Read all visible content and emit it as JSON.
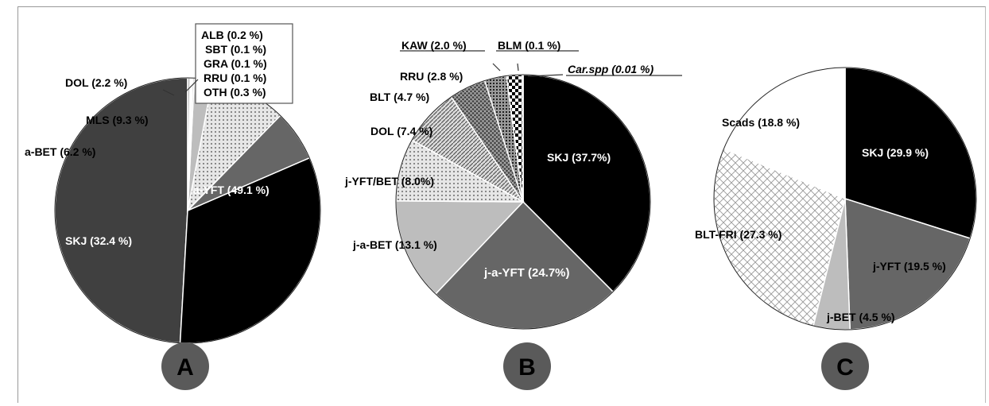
{
  "colors": {
    "black": "#000000",
    "dark_gray": "#404040",
    "mid_gray": "#666666",
    "light_gray": "#bdbdbd",
    "white": "#ffffff",
    "badge": "#5a5a5a"
  },
  "chart_data": [
    {
      "type": "pie",
      "badge": "A",
      "slices": [
        {
          "label": "a-YFT (49.1 %)",
          "value": 49.1,
          "fill": "dark"
        },
        {
          "label": "SKJ (32.4 %)",
          "value": 32.4,
          "fill": "black"
        },
        {
          "label": "a-BET (6.2 %)",
          "value": 6.2,
          "fill": "gray"
        },
        {
          "label": "MLS (9.3 %)",
          "value": 9.3,
          "fill": "dots"
        },
        {
          "label": "DOL (2.2 %)",
          "value": 2.2,
          "fill": "light"
        },
        {
          "label": "ALB (0.2 %)",
          "value": 0.2,
          "fill": "light"
        },
        {
          "label": "SBT (0.1 %)",
          "value": 0.1,
          "fill": "light"
        },
        {
          "label": "GRA (0.1 %)",
          "value": 0.1,
          "fill": "light"
        },
        {
          "label": "RRU (0.1 %)",
          "value": 0.1,
          "fill": "light"
        },
        {
          "label": "OTH (0.3 %)",
          "value": 0.3,
          "fill": "light"
        }
      ]
    },
    {
      "type": "pie",
      "badge": "B",
      "slices": [
        {
          "label": "SKJ (37.7%)",
          "value": 37.7,
          "fill": "black"
        },
        {
          "label": "j-a-YFT (24.7%)",
          "value": 24.7,
          "fill": "gray"
        },
        {
          "label": "j-a-BET (13.1 %)",
          "value": 13.1,
          "fill": "light"
        },
        {
          "label": "j-YFT/BET (8.0%)",
          "value": 8.0,
          "fill": "dots"
        },
        {
          "label": "DOL (7.4 %)",
          "value": 7.4,
          "fill": "diag"
        },
        {
          "label": "BLT (4.7 %)",
          "value": 4.7,
          "fill": "cross"
        },
        {
          "label": "RRU (2.8 %)",
          "value": 2.8,
          "fill": "dotsdark"
        },
        {
          "label": "KAW (2.0 %)",
          "value": 2.0,
          "fill": "checker"
        },
        {
          "label": "BLM (0.1 %)",
          "value": 0.1,
          "fill": "dark"
        },
        {
          "label": "Car.spp (0.01 %)",
          "value": 0.01,
          "fill": "white"
        }
      ]
    },
    {
      "type": "pie",
      "badge": "C",
      "slices": [
        {
          "label": "SKJ (29.9 %)",
          "value": 29.9,
          "fill": "black"
        },
        {
          "label": "j-YFT (19.5 %)",
          "value": 19.5,
          "fill": "gray"
        },
        {
          "label": "j-BET (4.5 %)",
          "value": 4.5,
          "fill": "light"
        },
        {
          "label": "BLT-FRI (27.3 %)",
          "value": 27.3,
          "fill": "mesh"
        },
        {
          "label": "Scads (18.8 %)",
          "value": 18.8,
          "fill": "white"
        }
      ]
    }
  ]
}
